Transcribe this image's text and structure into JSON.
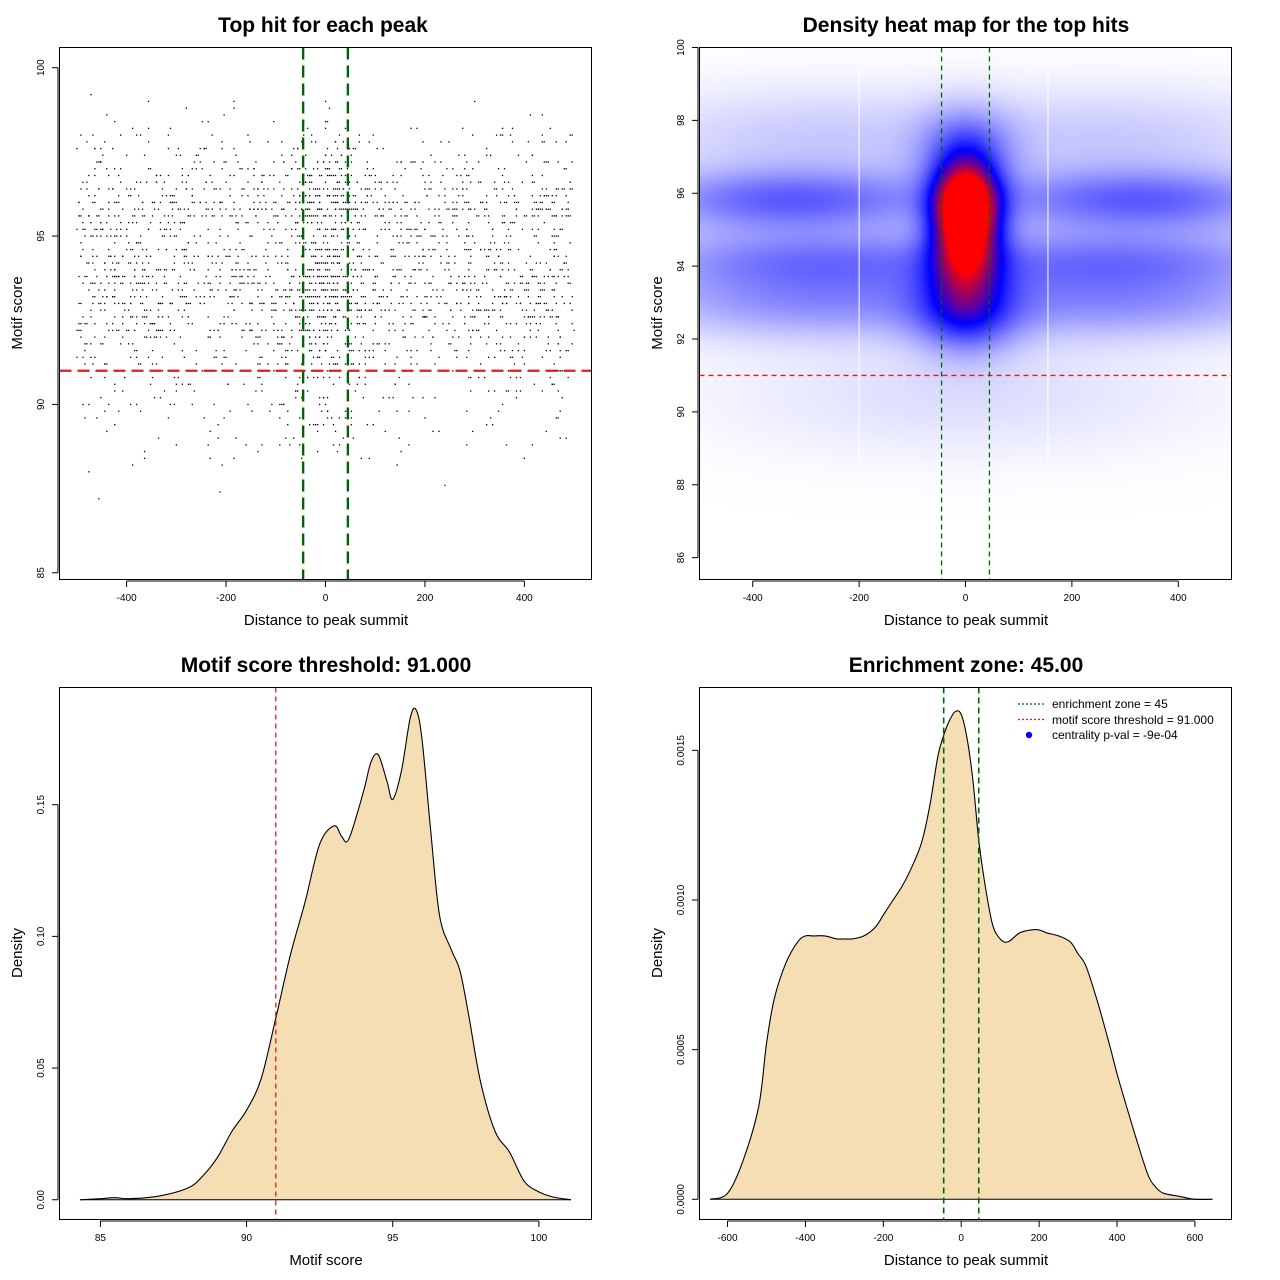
{
  "colors": {
    "scatter_point": "#000000",
    "threshold_line": "#e31a1c",
    "zone_line": "#006400",
    "density_fill": "#f5deb3",
    "heat_low": "#ffffff",
    "heat_mid": "#0000ff",
    "heat_high": "#ff0000"
  },
  "chart_data": [
    {
      "type": "scatter",
      "title": "Top hit for each peak",
      "xlabel": "Distance to peak summit",
      "ylabel": "Motif score",
      "xlim": [
        -535,
        535
      ],
      "ylim": [
        84.8,
        100.6
      ],
      "xticks": [
        -400,
        -200,
        0,
        200,
        400
      ],
      "yticks": [
        85,
        90,
        95,
        100
      ],
      "xtick_labels": [
        "-400",
        "-200",
        "0",
        "200",
        "400"
      ],
      "ytick_labels": [
        "85",
        "90",
        "95",
        "100"
      ],
      "threshold_y": 91,
      "zone_x": [
        -45,
        45
      ],
      "points": {
        "n": 2600,
        "x_range": [
          -500,
          500
        ],
        "score_modes": [
          {
            "mean": 95.8,
            "sd": 0.55,
            "weight": 0.24
          },
          {
            "mean": 94.2,
            "sd": 0.55,
            "weight": 0.22
          },
          {
            "mean": 93.0,
            "sd": 0.55,
            "weight": 0.2
          },
          {
            "mean": 97.2,
            "sd": 0.7,
            "weight": 0.12
          },
          {
            "mean": 91.8,
            "sd": 0.8,
            "weight": 0.14
          },
          {
            "mean": 90.0,
            "sd": 1.1,
            "weight": 0.08
          }
        ],
        "central_fraction": 0.16,
        "central_sd": 45
      }
    },
    {
      "type": "heatmap",
      "title": "Density heat map for the top hits",
      "xlabel": "Distance to peak summit",
      "ylabel": "Motif score",
      "xlim": [
        -500,
        500
      ],
      "ylim": [
        85.4,
        100
      ],
      "xticks": [
        -400,
        -200,
        0,
        200,
        400
      ],
      "yticks": [
        86,
        88,
        90,
        92,
        94,
        96,
        98,
        100
      ],
      "xtick_labels": [
        "-400",
        "-200",
        "0",
        "200",
        "400"
      ],
      "ytick_labels": [
        "86",
        "88",
        "90",
        "92",
        "94",
        "96",
        "98",
        "100"
      ],
      "threshold_y": 91,
      "zone_x": [
        -45,
        45
      ],
      "white_lines_x": [
        -200,
        155
      ],
      "hotspots": [
        {
          "x": 0,
          "y": 95.7,
          "sx": 40,
          "sy": 0.8,
          "w": 1.3
        },
        {
          "x": 0,
          "y": 94.5,
          "sx": 45,
          "sy": 1.1,
          "w": 0.9
        },
        {
          "x": -330,
          "y": 95.8,
          "sx": 200,
          "sy": 0.6,
          "w": 0.45
        },
        {
          "x": 330,
          "y": 95.8,
          "sx": 200,
          "sy": 0.6,
          "w": 0.45
        },
        {
          "x": -300,
          "y": 94.2,
          "sx": 240,
          "sy": 0.6,
          "w": 0.35
        },
        {
          "x": 300,
          "y": 94.2,
          "sx": 240,
          "sy": 0.6,
          "w": 0.35
        },
        {
          "x": -300,
          "y": 93.0,
          "sx": 240,
          "sy": 0.7,
          "w": 0.3
        },
        {
          "x": 300,
          "y": 93.0,
          "sx": 240,
          "sy": 0.7,
          "w": 0.3
        },
        {
          "x": 0,
          "y": 92.7,
          "sx": 70,
          "sy": 0.8,
          "w": 0.4
        },
        {
          "x": 0,
          "y": 97.2,
          "sx": 60,
          "sy": 0.8,
          "w": 0.35
        },
        {
          "x": -300,
          "y": 97.5,
          "sx": 250,
          "sy": 1.0,
          "w": 0.15
        },
        {
          "x": 300,
          "y": 97.5,
          "sx": 250,
          "sy": 1.0,
          "w": 0.15
        },
        {
          "x": 0,
          "y": 90.5,
          "sx": 320,
          "sy": 1.2,
          "w": 0.1
        }
      ]
    },
    {
      "type": "area",
      "title": "Motif score threshold: 91.000",
      "xlabel": "Motif score",
      "ylabel": "Density",
      "xlim": [
        83.6,
        101.8
      ],
      "ylim": [
        -0.0075,
        0.1945
      ],
      "xticks": [
        85,
        90,
        95,
        100
      ],
      "yticks": [
        0,
        0.05,
        0.1,
        0.15
      ],
      "xtick_labels": [
        "85",
        "90",
        "95",
        "100"
      ],
      "ytick_labels": [
        "0.00",
        "0.05",
        "0.10",
        "0.15"
      ],
      "threshold_x": 91,
      "x": [
        84.3,
        85.0,
        85.5,
        86.0,
        87.0,
        88.0,
        88.5,
        89.0,
        89.5,
        90.0,
        90.5,
        91.0,
        91.5,
        92.0,
        92.5,
        93.0,
        93.25,
        93.5,
        94.0,
        94.25,
        94.5,
        94.8,
        95.0,
        95.3,
        95.6,
        95.8,
        96.0,
        96.3,
        96.6,
        97.0,
        97.3,
        97.6,
        98.0,
        98.5,
        99.0,
        99.5,
        100.0,
        100.5,
        101.1
      ],
      "y": [
        0.0,
        0.0004,
        0.0008,
        0.0004,
        0.0014,
        0.0045,
        0.009,
        0.016,
        0.026,
        0.034,
        0.046,
        0.069,
        0.093,
        0.113,
        0.135,
        0.142,
        0.138,
        0.137,
        0.155,
        0.166,
        0.169,
        0.159,
        0.152,
        0.163,
        0.183,
        0.186,
        0.175,
        0.14,
        0.108,
        0.095,
        0.087,
        0.07,
        0.045,
        0.026,
        0.018,
        0.007,
        0.003,
        0.001,
        0.0
      ],
      "fill_color": "#f5deb3"
    },
    {
      "type": "area",
      "title": "Enrichment zone: 45.00",
      "xlabel": "Distance to peak summit",
      "ylabel": "Density",
      "xlim": [
        -672,
        694
      ],
      "ylim": [
        -6.75e-05,
        0.00171
      ],
      "xticks": [
        -600,
        -400,
        -200,
        0,
        200,
        400,
        600
      ],
      "yticks": [
        0,
        0.0005,
        0.001,
        0.0015
      ],
      "xtick_labels": [
        "-600",
        "-400",
        "-200",
        "0",
        "200",
        "400",
        "600"
      ],
      "ytick_labels": [
        "0.0000",
        "0.0005",
        "0.0010",
        "0.0015"
      ],
      "zone_x": [
        -45,
        45
      ],
      "x": [
        -645,
        -600,
        -560,
        -520,
        -500,
        -480,
        -450,
        -420,
        -400,
        -380,
        -350,
        -320,
        -300,
        -280,
        -250,
        -220,
        -200,
        -180,
        -150,
        -120,
        -100,
        -80,
        -60,
        -45,
        -30,
        -15,
        0,
        15,
        30,
        45,
        60,
        80,
        100,
        120,
        150,
        180,
        200,
        220,
        250,
        280,
        300,
        320,
        350,
        380,
        400,
        420,
        450,
        480,
        500,
        520,
        560,
        600,
        645
      ],
      "y": [
        0.0,
        2e-05,
        0.00013,
        0.00031,
        0.00052,
        0.00067,
        0.00079,
        0.00086,
        0.00088,
        0.00088,
        0.00088,
        0.00087,
        0.00087,
        0.00087,
        0.00088,
        0.00091,
        0.00095,
        0.00099,
        0.00105,
        0.00113,
        0.0012,
        0.00132,
        0.00148,
        0.00155,
        0.0016,
        0.00163,
        0.00162,
        0.00154,
        0.0014,
        0.0012,
        0.00106,
        0.00092,
        0.00087,
        0.00086,
        0.00089,
        0.0009,
        0.0009,
        0.00089,
        0.00088,
        0.00086,
        0.00082,
        0.00078,
        0.00066,
        0.00052,
        0.00042,
        0.00033,
        0.0002,
        8e-05,
        4e-05,
        2e-05,
        1e-05,
        0.0,
        0.0
      ],
      "fill_color": "#f5deb3",
      "legend": [
        {
          "text": "enrichment zone = 45",
          "kind": "dotted-line",
          "color": "#006400"
        },
        {
          "text": "motif score threshold = 91.000",
          "kind": "dotted-line",
          "color": "#e31a1c"
        },
        {
          "text": "centrality p-val = -9e-04",
          "kind": "dot",
          "color": "#0000ff"
        }
      ]
    }
  ]
}
